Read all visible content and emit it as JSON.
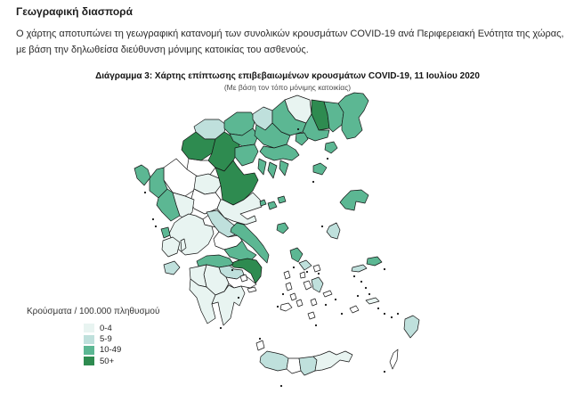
{
  "heading": "Γεωγραφική διασπορά",
  "paragraph": "Ο χάρτης αποτυπώνει τη γεωγραφική κατανομή των συνολικών κρουσμάτων COVID-19 ανά Περιφερειακή Ενότητα της χώρας, με βάση την δηλωθείσα διεύθυνση μόνιμης κατοικίας του ασθενούς.",
  "figure": {
    "title": "Διάγραμμα 3: Χάρτης επίπτωσης επιβεβαιωμένων κρουσμάτων COVID-19, 11 Ιουλίου 2020",
    "subtitle": "(Με βάση τον τόπο μόνιμης κατοικίας)"
  },
  "legend": {
    "title": "Κρούσματα / 100.000 πληθυσμού",
    "items": [
      {
        "label": "0-4",
        "color": "#e8f4f1"
      },
      {
        "label": "5-9",
        "color": "#bfe0dc"
      },
      {
        "label": "10-49",
        "color": "#5cb793"
      },
      {
        "label": "50+",
        "color": "#2e8b50"
      }
    ]
  },
  "chart_data": {
    "type": "choropleth",
    "title": "Διάγραμμα 3: Χάρτης επίπτωσης επιβεβαιωμένων κρουσμάτων COVID-19, 11 Ιουλίου 2020",
    "subtitle": "(Με βάση τον τόπο μόνιμης κατοικίας)",
    "unit": "Κρούσματα / 100.000 πληθυσμού",
    "classes": [
      {
        "key": "c1",
        "label": "0-4",
        "color": "#e8f4f1"
      },
      {
        "key": "c2",
        "label": "5-9",
        "color": "#bfe0dc"
      },
      {
        "key": "c3",
        "label": "10-49",
        "color": "#5cb793"
      },
      {
        "key": "c4",
        "label": "50+",
        "color": "#2e8b50"
      }
    ],
    "no_data_color": "#ffffff",
    "stroke": "#151515",
    "regions": [
      {
        "n": "ioannina",
        "c": "w",
        "p": "184,188 198,178 210,190 222,198 220,212 208,220 194,216 184,202"
      },
      {
        "n": "grevena",
        "c": "w",
        "p": "212,178 226,180 234,180 242,188 236,196 222,198 210,190"
      },
      {
        "n": "trikala",
        "c": "c1",
        "p": "218,212 220,198 234,195 246,200 248,208 242,216 230,218"
      },
      {
        "n": "karditsa",
        "c": "w",
        "p": "214,226 218,212 230,218 242,216 248,224 244,234 230,240 218,234"
      },
      {
        "n": "florina",
        "c": "c2",
        "p": "218,142 230,134 246,134 254,140 252,148 242,156 230,156 220,148"
      },
      {
        "n": "kastoria",
        "c": "c4",
        "p": "204,168 206,158 220,148 230,156 242,156 238,172 226,180 212,178"
      },
      {
        "n": "kozani",
        "c": "c4",
        "p": "238,172 242,156 252,148 266,156 270,166 262,180 252,192 242,188 234,180"
      },
      {
        "n": "pella",
        "c": "c3",
        "p": "252,136 266,126 282,126 287,133 284,144 272,152 258,150 252,144"
      },
      {
        "n": "imathia",
        "c": "c3",
        "p": "258,150 272,152 284,144 290,152 286,162 272,164 262,158"
      },
      {
        "n": "pieria",
        "c": "c3",
        "p": "264,166 272,164 286,162 290,170 284,182 272,186 264,176"
      },
      {
        "n": "kilkis",
        "c": "c2",
        "p": "284,134 284,128 296,120 306,124 306,138 298,146 288,140"
      },
      {
        "n": "thessaloniki",
        "c": "c3",
        "p": "286,152 288,140 298,146 306,138 316,148 326,152 322,162 308,166 296,162"
      },
      {
        "n": "serres",
        "c": "c3",
        "p": "306,138 306,124 320,112 324,124 332,134 344,138 340,148 326,152 316,148"
      },
      {
        "n": "drama",
        "c": "c1",
        "p": "324,124 320,112 334,107 348,112 350,128 344,138 332,134"
      },
      {
        "n": "xanthi",
        "c": "c4",
        "p": "350,128 350,112 364,114 368,128 370,144 358,146"
      },
      {
        "n": "kavala",
        "c": "c3",
        "p": "340,148 344,138 350,128 358,146 370,146 368,154 354,158 344,154"
      },
      {
        "n": "rhodope",
        "c": "c3",
        "p": "368,128 364,114 380,116 386,126 384,140 374,148 370,144"
      },
      {
        "n": "evros",
        "c": "c3",
        "p": "386,126 380,116 388,108 398,104 408,105 414,113 409,124 403,132 407,146 399,154 390,156 384,146 384,140"
      },
      {
        "n": "larissa",
        "c": "c4",
        "p": "248,208 246,200 242,188 252,192 262,180 266,186 274,196 286,194 290,202 284,214 274,224 262,230 250,224"
      },
      {
        "n": "magnesia",
        "c": "c1",
        "p": "244,234 248,224 250,224 262,230 274,224 284,216 292,224 294,232 282,236 270,240 278,246 286,242 288,248 276,252 262,248 252,244"
      },
      {
        "n": "thesprotia",
        "c": "c3",
        "p": "168,200 176,190 184,188 184,202 188,212 178,222 168,214"
      },
      {
        "n": "preveza",
        "c": "c3",
        "p": "178,222 188,212 194,216 198,230 202,242 192,248 182,238 176,230"
      },
      {
        "n": "arta",
        "c": "c1",
        "p": "198,230 194,216 208,220 218,224 216,238 208,246 202,242"
      },
      {
        "n": "aetolia-acarnania",
        "c": "c1",
        "p": "196,250 204,244 212,240 220,242 228,246 230,252 238,254 240,262 234,274 222,284 208,286 196,276 190,262"
      },
      {
        "n": "evrytania",
        "c": "w",
        "p": "228,246 236,240 244,240 250,248 248,256 238,254 230,252"
      },
      {
        "n": "phthiotida",
        "c": "c2",
        "p": "232,238 244,236 252,244 262,252 270,254 268,262 256,266 246,260 238,250"
      },
      {
        "n": "phocida",
        "c": "w",
        "p": "240,268 246,260 256,266 268,264 272,270 266,276 252,280 242,276"
      },
      {
        "n": "boeotia",
        "c": "c3",
        "p": "252,280 266,276 272,270 278,280 288,286 282,292 270,292 258,288"
      },
      {
        "n": "euboea",
        "c": "c3",
        "p": "260,256 266,250 274,252 280,258 288,266 296,276 302,286 300,295 293,288 284,278 274,270 266,264 259,260"
      },
      {
        "n": "attica",
        "c": "c4",
        "p": "258,296 268,292 278,290 288,292 294,300 293,310 287,318 282,307 273,301 263,300"
      },
      {
        "n": "achaia",
        "c": "c3",
        "p": "221,293 232,287 246,286 258,290 262,296 258,298 246,300 232,297 223,299"
      },
      {
        "n": "corinthia",
        "c": "c2",
        "p": "246,300 258,298 263,302 272,303 274,308 266,313 254,311 248,306"
      },
      {
        "n": "argolida",
        "c": "w",
        "p": "254,311 266,313 274,308 282,314 288,319 281,323 271,321 263,323 257,318"
      },
      {
        "n": "arcadia",
        "c": "c1",
        "p": "232,297 246,300 248,306 254,311 257,318 252,327 242,331 232,322 229,308"
      },
      {
        "n": "elis",
        "c": "c1",
        "p": "213,301 223,299 232,297 229,308 232,322 223,320 214,313"
      },
      {
        "n": "messinia",
        "c": "c1",
        "p": "214,313 223,320 232,322 242,331 238,341 242,357 233,363 226,349 221,334 213,325"
      },
      {
        "n": "laconia",
        "c": "c1",
        "p": "242,331 252,327 257,320 263,323 271,321 275,329 269,343 263,339 259,357 251,365 247,349 245,339 238,341"
      },
      {
        "n": "chalkidiki",
        "c": "c3",
        "p": "292,170 296,164 308,166 322,162 332,168 336,174 328,180 318,178 308,180 298,176"
      },
      {
        "n": "chalkidiki-kassandra",
        "c": "c3",
        "p": "291,178 299,182 296,196 290,189"
      },
      {
        "n": "chalkidiki-sithonia",
        "c": "c3",
        "p": "303,182 311,186 307,200 301,191"
      },
      {
        "n": "chalkidiki-athos",
        "c": "c3",
        "p": "315,180 324,184 320,197 314,189"
      },
      {
        "n": "corfu",
        "c": "c3",
        "p": "151,189 159,185 166,190 169,199 162,208 154,200"
      },
      {
        "n": "lefkada",
        "c": "c3",
        "p": "181,257 189,255 191,264 184,267"
      },
      {
        "n": "kefalonia",
        "c": "c1",
        "p": "183,270 194,266 202,272 199,284 189,288 182,280"
      },
      {
        "n": "ithaca",
        "c": "c1",
        "p": "203,270 207,268 209,278 204,282"
      },
      {
        "n": "zakynthos",
        "c": "c2",
        "p": "184,297 196,293 202,300 195,308 186,306"
      },
      {
        "n": "skiathos",
        "c": "c3",
        "p": "292,226 297,224 299,229 293,231"
      },
      {
        "n": "skopelos",
        "c": "c3",
        "p": "301,228 308,226 311,232 303,235"
      },
      {
        "n": "alonnisos",
        "c": "c3",
        "p": "312,222 319,220 321,226 314,228"
      },
      {
        "n": "skyros",
        "c": "c3",
        "p": "312,252 320,250 324,256 318,262 311,258"
      },
      {
        "n": "thasos",
        "c": "c3",
        "p": "333,150 342,149 346,156 339,163 332,158"
      },
      {
        "n": "samothrace",
        "c": "c3",
        "p": "366,161 375,159 379,166 372,172 365,168"
      },
      {
        "n": "limnos",
        "c": "c3",
        "p": "352,186 360,183 367,188 362,196 352,193"
      },
      {
        "n": "lesbos",
        "c": "c3",
        "p": "386,222 394,214 406,213 414,219 410,228 400,226 398,236 388,234 382,227"
      },
      {
        "n": "chios",
        "c": "c2",
        "p": "370,254 378,250 382,258 379,268 372,266 367,260"
      },
      {
        "n": "samos",
        "c": "c3",
        "p": "413,290 424,288 429,294 421,298 412,296"
      },
      {
        "n": "ikaria",
        "c": "c2",
        "p": "396,300 408,297 412,301 403,305 395,304"
      },
      {
        "n": "andros",
        "c": "c3",
        "p": "326,281 334,278 340,285 335,294 328,290"
      },
      {
        "n": "tinos",
        "c": "c2",
        "p": "336,295 344,292 350,298 342,303"
      },
      {
        "n": "mykonos",
        "c": "w",
        "p": "352,299 358,297 360,303 354,305"
      },
      {
        "n": "syros",
        "c": "w",
        "p": "337,307 342,305 343,311 338,312"
      },
      {
        "n": "kea",
        "c": "w",
        "p": "319,306 324,304 326,311 321,313"
      },
      {
        "n": "kythnos",
        "c": "w",
        "p": "321,319 326,317 328,324 323,326"
      },
      {
        "n": "serifos",
        "c": "w",
        "p": "326,331 331,329 333,335 328,337"
      },
      {
        "n": "sifnos",
        "c": "w",
        "p": "333,338 338,336 340,342 335,344"
      },
      {
        "n": "paros",
        "c": "w",
        "p": "341,317 347,315 350,322 344,325"
      },
      {
        "n": "naxos",
        "c": "c2",
        "p": "350,314 358,311 363,318 359,328 352,324"
      },
      {
        "n": "ios",
        "c": "w",
        "p": "349,337 354,335 356,341 351,343"
      },
      {
        "n": "milos",
        "c": "w",
        "p": "316,342 324,340 328,345 321,349 315,347"
      },
      {
        "n": "santorini",
        "c": "w",
        "p": "346,352 352,350 354,356 348,358"
      },
      {
        "n": "amorgos",
        "c": "w",
        "p": "363,329 371,326 373,330 365,333"
      },
      {
        "n": "astypalaia",
        "c": "w",
        "p": "393,346 400,343 403,348 396,351"
      },
      {
        "n": "kos",
        "c": "c1",
        "p": "411,337 422,334 426,338 415,341"
      },
      {
        "n": "rhodes",
        "c": "c2",
        "p": "455,358 464,354 471,359 469,370 461,379 454,369"
      },
      {
        "n": "karpathos",
        "c": "w",
        "p": "442,396 447,392 446,404 441,414 438,406"
      },
      {
        "n": "kythira",
        "c": "w",
        "p": "288,385 295,382 297,390 290,393"
      },
      {
        "n": "aegina",
        "c": "w",
        "p": "270,310 276,308 278,314 272,316"
      },
      {
        "n": "hydra",
        "c": "w",
        "p": "278,324 286,322 288,326 280,328"
      },
      {
        "n": "chania",
        "c": "c2",
        "p": "292,406 293,400 300,394 310,396 318,398 324,402 322,414 312,416 298,412"
      },
      {
        "n": "rethymno",
        "c": "w",
        "p": "322,414 324,402 336,402 338,416 328,419"
      },
      {
        "n": "heraklion",
        "c": "c2",
        "p": "338,416 336,402 352,400 356,404 354,416 342,421"
      },
      {
        "n": "lasithi",
        "c": "c1",
        "p": "354,416 356,404 352,400 360,398 370,394 378,398 388,394 396,398 392,406 382,404 372,412 362,415"
      }
    ],
    "islets": "163,216 362,254 432,417 316,433 268,334 248,368 358,307 345,305 330,300 318,330 366,342 377,336 384,352 402,332 398,310 312,344 355,365 175,254 172,246 335,145 368,178 352,204 292,380 432,302 406,316 411,323 415,330 425,346 432,352 440,356 447,352 261,303"
  }
}
